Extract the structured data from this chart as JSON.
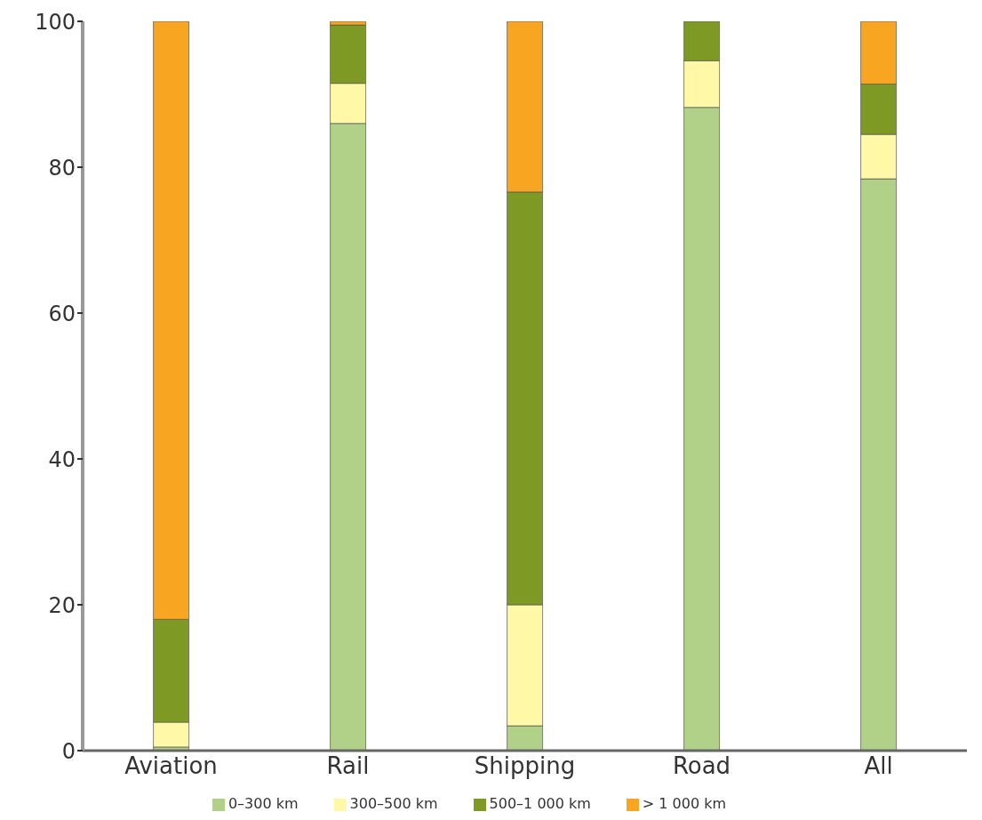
{
  "chart_data": {
    "type": "bar",
    "stacked": true,
    "categories": [
      "Aviation",
      "Rail",
      "Shipping",
      "Road",
      "All"
    ],
    "series": [
      {
        "name": "0–300 km",
        "color": "#b2d188",
        "values": [
          0.5,
          86,
          3.4,
          88.2,
          78.4
        ]
      },
      {
        "name": "300–500 km",
        "color": "#fff8a6",
        "values": [
          3.4,
          5.5,
          16.6,
          6.4,
          6.1
        ]
      },
      {
        "name": "500–1 000 km",
        "color": "#7f9a24",
        "values": [
          14.1,
          8,
          56.6,
          5.4,
          6.9
        ]
      },
      {
        "name": "> 1 000 km",
        "color": "#f8a621",
        "values": [
          82,
          0.5,
          23.4,
          0,
          8.6
        ]
      }
    ],
    "ylim": [
      0,
      100
    ],
    "yticks": [
      0,
      20,
      40,
      60,
      80,
      100
    ],
    "grid": false,
    "legend": "bottom"
  }
}
